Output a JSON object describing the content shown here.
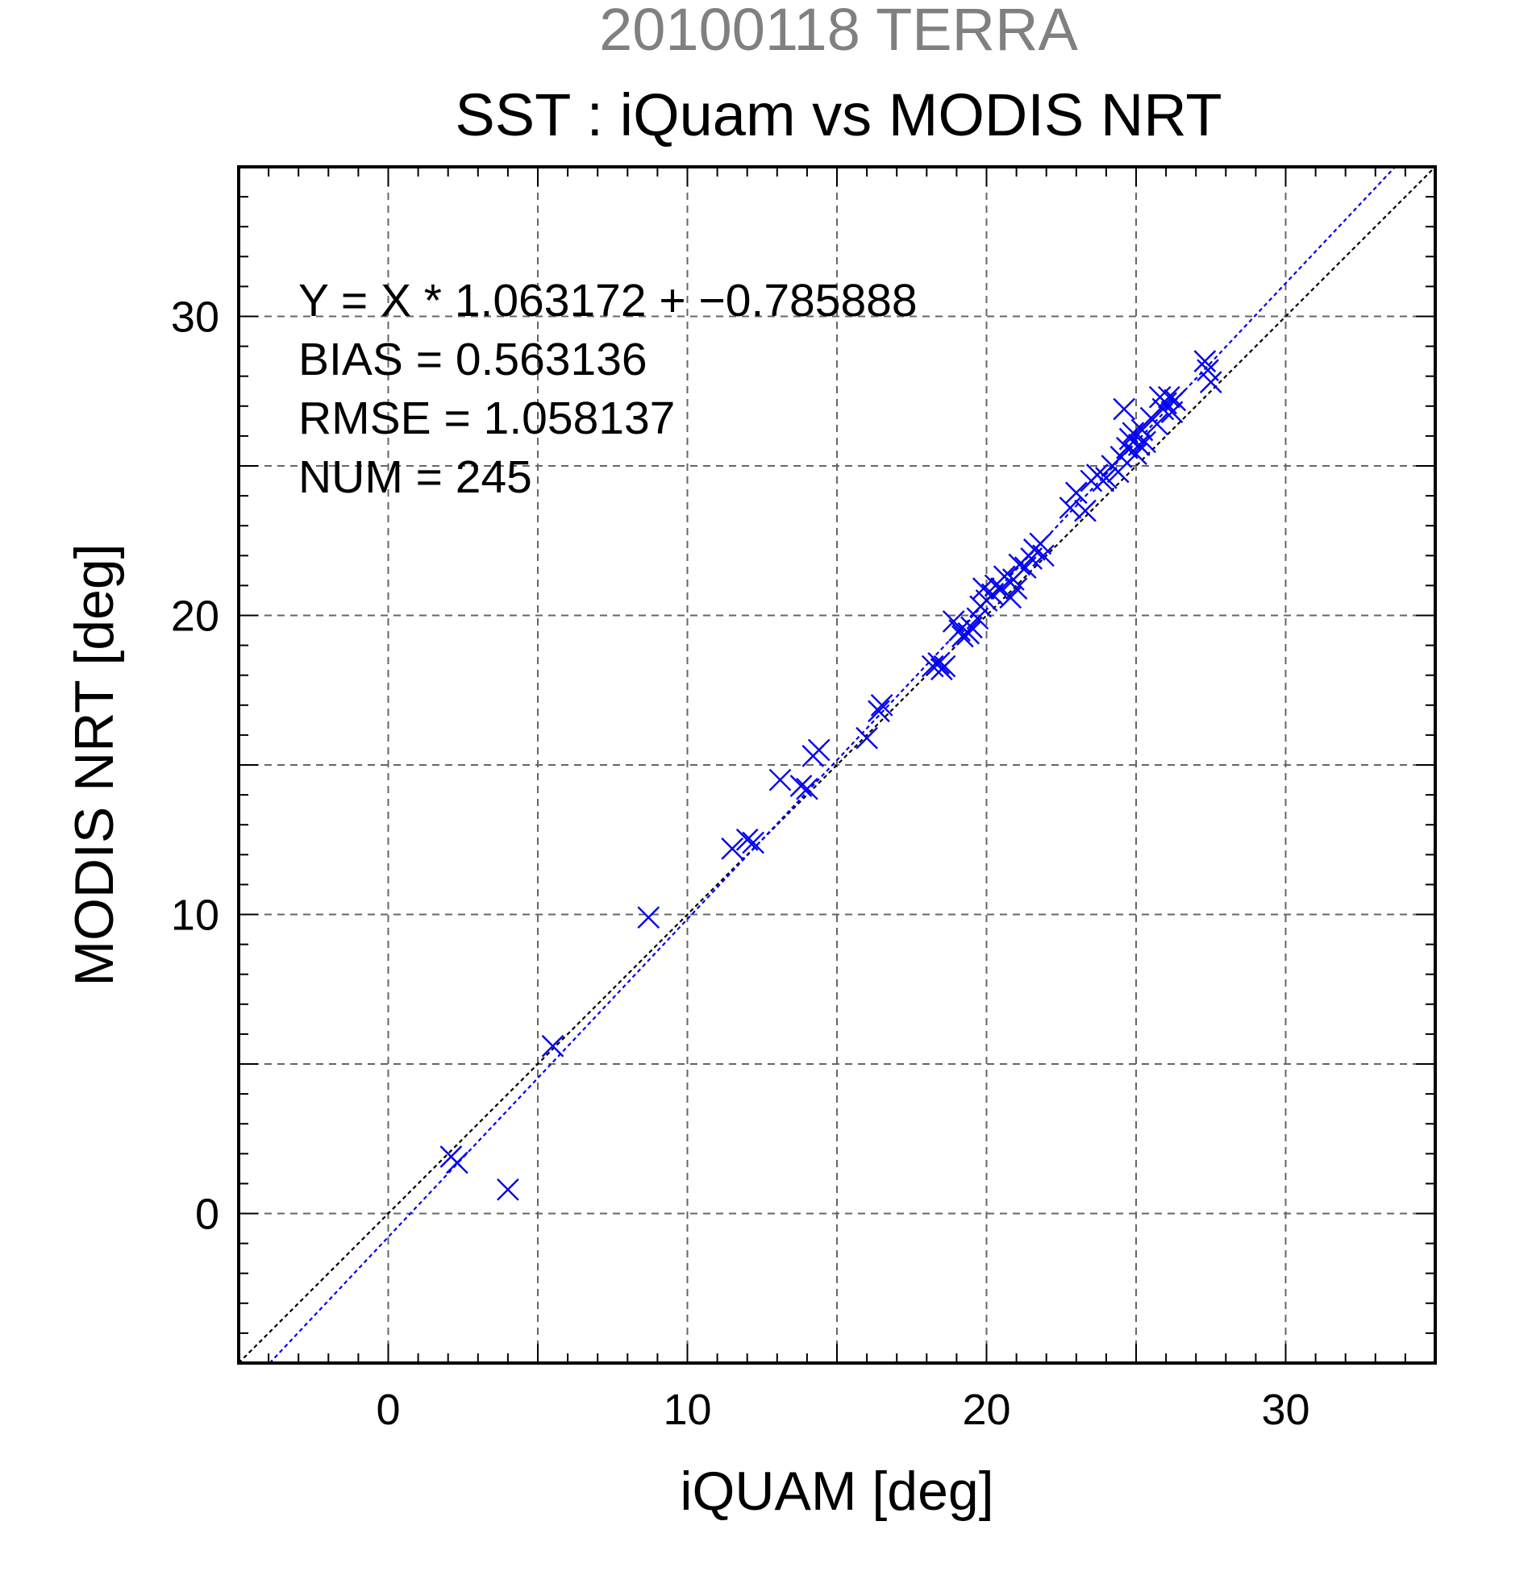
{
  "chart_data": {
    "type": "scatter",
    "title": "20100118 TERRA",
    "subtitle": "SST : iQuam vs MODIS NRT",
    "xlabel": "iQUAM [deg]",
    "ylabel": "MODIS NRT [deg]",
    "xlim": [
      -5,
      35
    ],
    "ylim": [
      -5,
      35
    ],
    "xticks": [
      0,
      10,
      20,
      30
    ],
    "yticks": [
      0,
      10,
      20,
      30
    ],
    "grid": true,
    "marker": "x",
    "colors": {
      "points": "#0000ee",
      "fit_line": "#0000ee",
      "identity_line": "#000000",
      "title": "#808080"
    },
    "stats": {
      "equation": "Y = X * 1.063172 + −0.785888",
      "bias": "BIAS = 0.563136",
      "rmse": "RMSE = 1.058137",
      "num": "NUM = 245"
    },
    "fit": {
      "slope": 1.063172,
      "intercept": -0.785888
    },
    "identity": {
      "slope": 1,
      "intercept": 0
    },
    "points": [
      [
        2.1,
        1.9
      ],
      [
        2.3,
        1.7
      ],
      [
        4.0,
        0.8
      ],
      [
        5.5,
        5.6
      ],
      [
        8.7,
        9.9
      ],
      [
        11.5,
        12.2
      ],
      [
        12.0,
        12.5
      ],
      [
        12.2,
        12.4
      ],
      [
        13.1,
        14.5
      ],
      [
        13.8,
        14.3
      ],
      [
        14.0,
        14.2
      ],
      [
        14.2,
        15.3
      ],
      [
        14.4,
        15.5
      ],
      [
        16.0,
        15.9
      ],
      [
        16.4,
        16.8
      ],
      [
        16.5,
        17.0
      ],
      [
        18.2,
        18.3
      ],
      [
        18.4,
        18.4
      ],
      [
        18.5,
        18.2
      ],
      [
        18.6,
        18.3
      ],
      [
        18.9,
        19.8
      ],
      [
        19.1,
        19.5
      ],
      [
        19.2,
        19.3
      ],
      [
        19.4,
        19.4
      ],
      [
        19.5,
        19.6
      ],
      [
        19.7,
        19.9
      ],
      [
        19.8,
        20.3
      ],
      [
        19.9,
        20.9
      ],
      [
        20.0,
        20.5
      ],
      [
        20.2,
        20.7
      ],
      [
        20.3,
        21.0
      ],
      [
        20.5,
        20.9
      ],
      [
        20.6,
        21.3
      ],
      [
        20.8,
        20.6
      ],
      [
        20.9,
        21.2
      ],
      [
        21.0,
        20.9
      ],
      [
        21.1,
        21.7
      ],
      [
        21.3,
        21.6
      ],
      [
        21.5,
        21.9
      ],
      [
        21.6,
        22.2
      ],
      [
        21.8,
        22.4
      ],
      [
        21.9,
        22.0
      ],
      [
        22.8,
        23.6
      ],
      [
        23.0,
        24.1
      ],
      [
        23.3,
        23.5
      ],
      [
        23.5,
        24.5
      ],
      [
        23.7,
        24.7
      ],
      [
        23.9,
        24.5
      ],
      [
        24.0,
        24.6
      ],
      [
        24.2,
        25.0
      ],
      [
        24.4,
        24.8
      ],
      [
        24.5,
        25.3
      ],
      [
        24.6,
        26.9
      ],
      [
        24.7,
        25.6
      ],
      [
        24.8,
        25.9
      ],
      [
        24.9,
        26.1
      ],
      [
        25.0,
        25.4
      ],
      [
        25.1,
        25.7
      ],
      [
        25.2,
        26.2
      ],
      [
        25.3,
        25.8
      ],
      [
        25.5,
        26.6
      ],
      [
        25.7,
        26.4
      ],
      [
        25.8,
        27.3
      ],
      [
        25.9,
        26.9
      ],
      [
        26.0,
        27.1
      ],
      [
        26.1,
        27.3
      ],
      [
        26.2,
        26.8
      ],
      [
        26.3,
        27.2
      ],
      [
        27.3,
        28.5
      ],
      [
        27.4,
        28.2
      ],
      [
        27.5,
        27.8
      ]
    ]
  }
}
